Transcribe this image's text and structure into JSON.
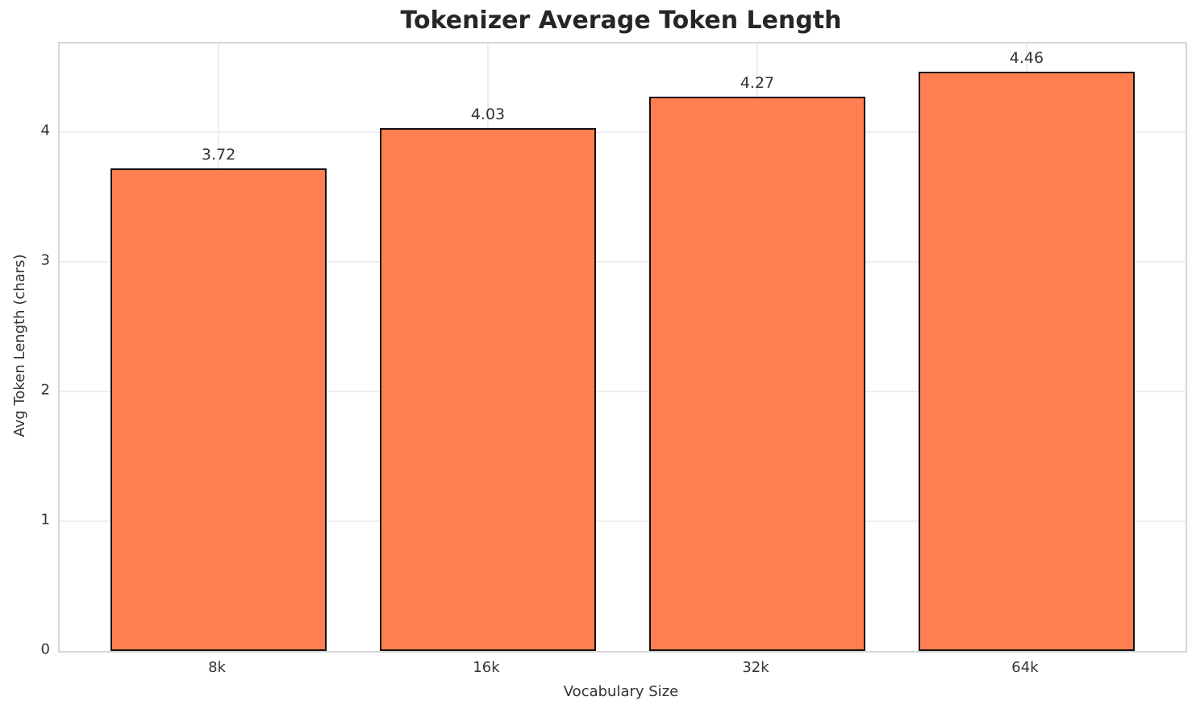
{
  "chart_data": {
    "type": "bar",
    "title": "Tokenizer Average Token Length",
    "xlabel": "Vocabulary Size",
    "ylabel": "Avg Token Length (chars)",
    "categories": [
      "8k",
      "16k",
      "32k",
      "64k"
    ],
    "values": [
      3.72,
      4.03,
      4.27,
      4.46
    ],
    "value_labels": [
      "3.72",
      "4.03",
      "4.27",
      "4.46"
    ],
    "yticks": [
      0,
      1,
      2,
      3,
      4
    ],
    "ylim": [
      0,
      4.68
    ],
    "grid": "both",
    "legend": "none",
    "colors": {
      "bar_fill": "#ff7f50",
      "bar_edge": "#111111",
      "title_text": "#262626",
      "tick_text": "#333333",
      "grid_line": "#eeeeee",
      "spine": "#d6d6d6",
      "background": "#ffffff"
    }
  }
}
